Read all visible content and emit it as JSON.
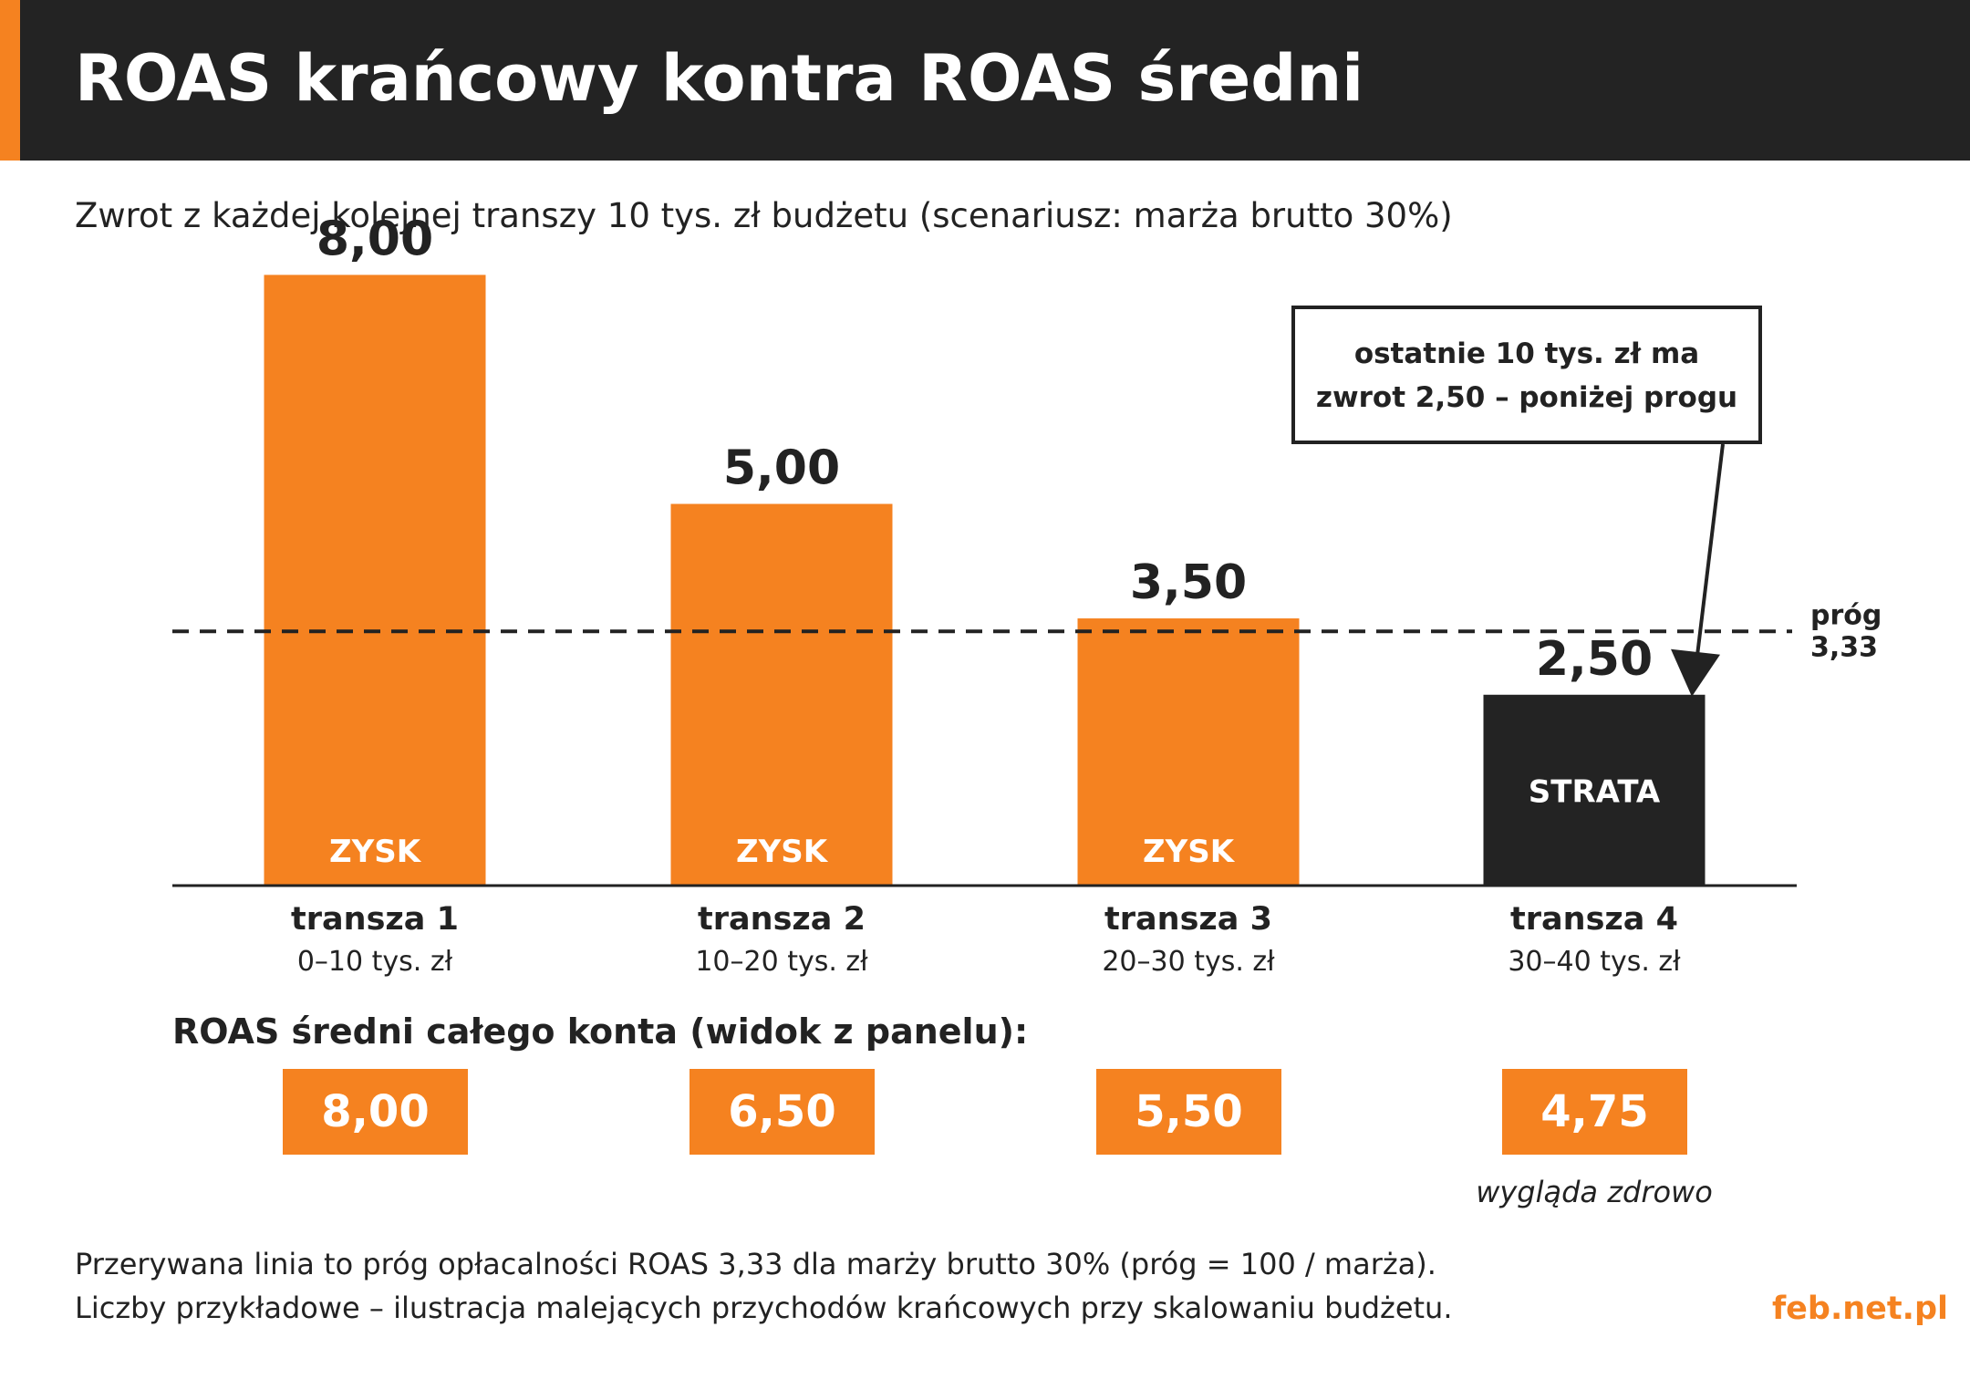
{
  "title": "ROAS krańcowy kontra ROAS średni",
  "subtitle": "Zwrot z każdej kolejnej transzy 10 tys. zł budżetu (scenariusz: marża brutto 30%)",
  "colors": {
    "accent": "#f58220",
    "dark": "#232323",
    "text": "#222222"
  },
  "chart_data": {
    "type": "bar",
    "categories": [
      "transza 1",
      "transza 2",
      "transza 3",
      "transza 4"
    ],
    "sublabels": [
      "0–10 tys. zł",
      "10–20 tys. zł",
      "20–30 tys. zł",
      "30–40 tys. zł"
    ],
    "values": [
      8.0,
      5.0,
      3.5,
      2.5
    ],
    "value_labels": [
      "8,00",
      "5,00",
      "3,50",
      "2,50"
    ],
    "bar_labels": [
      "ZYSK",
      "ZYSK",
      "ZYSK",
      "STRATA"
    ],
    "bar_colors": [
      "#f58220",
      "#f58220",
      "#f58220",
      "#232323"
    ],
    "threshold": {
      "value": 3.33,
      "label_line1": "próg",
      "label_line2": "3,33",
      "style": "dashed"
    },
    "annotation": {
      "line1": "ostatnie 10 tys. zł ma",
      "line2": "zwrot 2,50 – poniżej progu",
      "target_category": "transza 4"
    },
    "ylim": [
      0,
      8.5
    ],
    "grid": false
  },
  "average": {
    "heading": "ROAS średni całego konta (widok z panelu):",
    "values": [
      "8,00",
      "6,50",
      "5,50",
      "4,75"
    ],
    "note": "wygląda zdrowo"
  },
  "footnotes": [
    "Przerywana linia to próg opłacalności ROAS 3,33 dla marży brutto 30% (próg = 100 / marża).",
    "Liczby przykładowe – ilustracja malejących przychodów krańcowych przy skalowaniu budżetu."
  ],
  "brand": "feb.net.pl"
}
